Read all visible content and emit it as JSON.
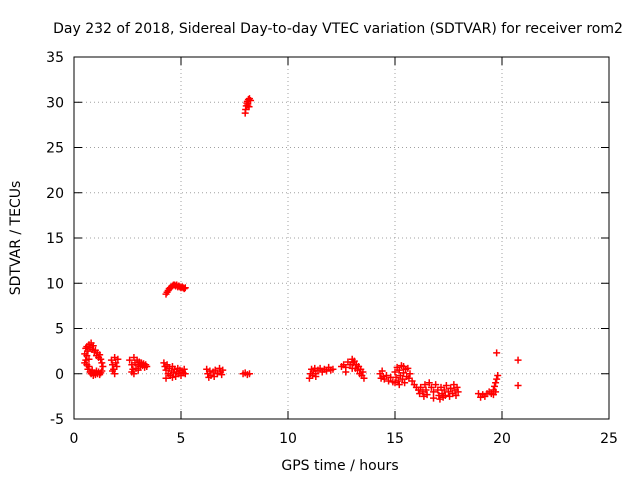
{
  "chart_data": {
    "type": "scatter",
    "title": "Day 232 of 2018, Sidereal Day-to-day VTEC variation (SDTVAR) for receiver rom2",
    "xlabel": "GPS time / hours",
    "ylabel": "SDTVAR / TECUs",
    "xlim": [
      0,
      25
    ],
    "ylim": [
      -5,
      35
    ],
    "xticks": [
      0,
      5,
      10,
      15,
      20,
      25
    ],
    "yticks": [
      -5,
      0,
      5,
      10,
      15,
      20,
      25,
      30,
      35
    ],
    "grid": true,
    "marker": "+",
    "color": "#ff0000",
    "series": [
      {
        "name": "SDTVAR",
        "points": [
          [
            0.5,
            2.2
          ],
          [
            0.55,
            2.8
          ],
          [
            0.6,
            3.0
          ],
          [
            0.65,
            2.5
          ],
          [
            0.7,
            3.2
          ],
          [
            0.75,
            2.9
          ],
          [
            0.8,
            3.4
          ],
          [
            0.85,
            2.7
          ],
          [
            0.9,
            3.1
          ],
          [
            0.95,
            2.4
          ],
          [
            1.0,
            2.6
          ],
          [
            1.05,
            2.0
          ],
          [
            1.1,
            2.3
          ],
          [
            1.15,
            1.8
          ],
          [
            1.2,
            2.1
          ],
          [
            1.25,
            1.6
          ],
          [
            0.55,
            1.5
          ],
          [
            0.6,
            1.0
          ],
          [
            0.65,
            0.5
          ],
          [
            0.7,
            0.8
          ],
          [
            0.75,
            0.2
          ],
          [
            0.8,
            0.0
          ],
          [
            0.85,
            0.4
          ],
          [
            0.9,
            -0.2
          ],
          [
            0.95,
            0.1
          ],
          [
            1.0,
            -0.1
          ],
          [
            1.05,
            0.3
          ],
          [
            1.1,
            0.0
          ],
          [
            1.15,
            0.2
          ],
          [
            1.2,
            -0.1
          ],
          [
            1.25,
            0.1
          ],
          [
            1.3,
            0.3
          ],
          [
            0.5,
            1.2
          ],
          [
            0.6,
            2.0
          ],
          [
            0.7,
            1.6
          ],
          [
            1.3,
            1.2
          ],
          [
            1.35,
            0.8
          ],
          [
            1.75,
            1.5
          ],
          [
            1.8,
            1.0
          ],
          [
            1.85,
            0.5
          ],
          [
            1.9,
            1.8
          ],
          [
            1.95,
            1.2
          ],
          [
            2.0,
            0.8
          ],
          [
            2.05,
            1.6
          ],
          [
            1.8,
            0.3
          ],
          [
            1.9,
            0.0
          ],
          [
            2.6,
            1.5
          ],
          [
            2.7,
            1.0
          ],
          [
            2.75,
            0.5
          ],
          [
            2.8,
            1.8
          ],
          [
            2.85,
            1.2
          ],
          [
            2.9,
            0.6
          ],
          [
            2.95,
            1.5
          ],
          [
            3.0,
            1.0
          ],
          [
            3.05,
            1.3
          ],
          [
            3.1,
            0.8
          ],
          [
            3.15,
            1.2
          ],
          [
            3.2,
            0.9
          ],
          [
            3.25,
            1.1
          ],
          [
            3.3,
            0.7
          ],
          [
            3.35,
            1.0
          ],
          [
            3.4,
            0.8
          ],
          [
            2.7,
            0.2
          ],
          [
            2.8,
            0.0
          ],
          [
            3.0,
            0.4
          ],
          [
            4.3,
            8.8
          ],
          [
            4.35,
            9.0
          ],
          [
            4.4,
            9.2
          ],
          [
            4.45,
            9.4
          ],
          [
            4.5,
            9.5
          ],
          [
            4.55,
            9.6
          ],
          [
            4.6,
            9.7
          ],
          [
            4.65,
            9.8
          ],
          [
            4.7,
            9.8
          ],
          [
            4.75,
            9.7
          ],
          [
            4.8,
            9.8
          ],
          [
            4.85,
            9.6
          ],
          [
            4.9,
            9.7
          ],
          [
            4.95,
            9.6
          ],
          [
            5.0,
            9.5
          ],
          [
            5.05,
            9.6
          ],
          [
            5.1,
            9.5
          ],
          [
            5.15,
            9.4
          ],
          [
            5.2,
            9.5
          ],
          [
            4.2,
            1.2
          ],
          [
            4.25,
            0.8
          ],
          [
            4.3,
            0.4
          ],
          [
            4.35,
            1.0
          ],
          [
            4.4,
            0.0
          ],
          [
            4.45,
            0.6
          ],
          [
            4.5,
            -0.2
          ],
          [
            4.55,
            0.3
          ],
          [
            4.6,
            0.8
          ],
          [
            4.65,
            0.1
          ],
          [
            4.7,
            0.5
          ],
          [
            4.75,
            -0.3
          ],
          [
            4.8,
            0.2
          ],
          [
            4.85,
            0.6
          ],
          [
            4.9,
            0.0
          ],
          [
            4.95,
            0.4
          ],
          [
            5.0,
            -0.2
          ],
          [
            5.05,
            0.3
          ],
          [
            5.1,
            0.1
          ],
          [
            5.15,
            0.5
          ],
          [
            5.2,
            0.0
          ],
          [
            4.3,
            -0.5
          ],
          [
            4.6,
            -0.4
          ],
          [
            6.2,
            0.5
          ],
          [
            6.25,
            0.0
          ],
          [
            6.3,
            -0.4
          ],
          [
            6.35,
            0.3
          ],
          [
            6.4,
            -0.2
          ],
          [
            6.5,
            0.2
          ],
          [
            6.55,
            -0.3
          ],
          [
            6.6,
            0.4
          ],
          [
            6.7,
            0.0
          ],
          [
            6.8,
            0.6
          ],
          [
            6.85,
            0.2
          ],
          [
            6.9,
            -0.1
          ],
          [
            6.95,
            0.4
          ],
          [
            8.0,
            28.8
          ],
          [
            8.02,
            29.2
          ],
          [
            8.05,
            29.6
          ],
          [
            8.08,
            29.9
          ],
          [
            8.1,
            30.1
          ],
          [
            8.12,
            29.7
          ],
          [
            8.15,
            30.3
          ],
          [
            8.18,
            29.5
          ],
          [
            8.2,
            30.4
          ],
          [
            8.25,
            30.2
          ],
          [
            7.9,
            0.0
          ],
          [
            8.0,
            0.1
          ],
          [
            8.1,
            -0.1
          ],
          [
            8.2,
            0.0
          ],
          [
            11.0,
            -0.5
          ],
          [
            11.05,
            0.0
          ],
          [
            11.1,
            0.5
          ],
          [
            11.15,
            -0.2
          ],
          [
            11.2,
            0.3
          ],
          [
            11.25,
            0.6
          ],
          [
            11.3,
            0.0
          ],
          [
            11.4,
            0.4
          ],
          [
            11.5,
            0.6
          ],
          [
            11.6,
            0.2
          ],
          [
            11.7,
            0.5
          ],
          [
            11.8,
            0.3
          ],
          [
            11.9,
            0.7
          ],
          [
            12.0,
            0.4
          ],
          [
            12.1,
            0.5
          ],
          [
            11.3,
            -0.3
          ],
          [
            12.5,
            0.8
          ],
          [
            12.6,
            1.0
          ],
          [
            12.7,
            0.7
          ],
          [
            12.8,
            1.3
          ],
          [
            12.9,
            1.0
          ],
          [
            13.0,
            1.6
          ],
          [
            13.05,
            1.2
          ],
          [
            13.1,
            1.4
          ],
          [
            13.15,
            0.6
          ],
          [
            13.2,
            1.0
          ],
          [
            13.25,
            0.4
          ],
          [
            13.3,
            0.8
          ],
          [
            13.35,
            0.0
          ],
          [
            13.4,
            0.5
          ],
          [
            13.45,
            -0.2
          ],
          [
            13.5,
            0.2
          ],
          [
            13.55,
            -0.5
          ],
          [
            13.0,
            0.6
          ],
          [
            12.7,
            0.2
          ],
          [
            14.3,
            0.0
          ],
          [
            14.35,
            -0.5
          ],
          [
            14.4,
            0.3
          ],
          [
            14.45,
            -0.3
          ],
          [
            14.5,
            -0.6
          ],
          [
            14.6,
            -0.2
          ],
          [
            14.7,
            -0.8
          ],
          [
            14.8,
            -0.4
          ],
          [
            14.9,
            -0.9
          ],
          [
            15.0,
            0.2
          ],
          [
            15.05,
            -0.4
          ],
          [
            15.1,
            0.7
          ],
          [
            15.15,
            -0.8
          ],
          [
            15.2,
            0.4
          ],
          [
            15.25,
            -0.2
          ],
          [
            15.3,
            0.9
          ],
          [
            15.35,
            -0.6
          ],
          [
            15.4,
            0.1
          ],
          [
            15.45,
            -1.0
          ],
          [
            15.5,
            0.5
          ],
          [
            15.55,
            -0.3
          ],
          [
            15.6,
            0.6
          ],
          [
            15.65,
            -0.5
          ],
          [
            15.7,
            0.0
          ],
          [
            15.0,
            -1.0
          ],
          [
            15.2,
            -1.2
          ],
          [
            15.4,
            0.8
          ],
          [
            15.8,
            -0.8
          ],
          [
            15.9,
            -1.2
          ],
          [
            16.0,
            -1.5
          ],
          [
            16.1,
            -1.8
          ],
          [
            16.15,
            -2.2
          ],
          [
            16.2,
            -1.5
          ],
          [
            16.3,
            -2.0
          ],
          [
            16.35,
            -2.5
          ],
          [
            16.4,
            -1.2
          ],
          [
            16.45,
            -1.8
          ],
          [
            16.5,
            -2.3
          ],
          [
            16.6,
            -1.0
          ],
          [
            16.7,
            -1.5
          ],
          [
            16.8,
            -2.0
          ],
          [
            16.9,
            -1.2
          ],
          [
            17.0,
            -1.8
          ],
          [
            17.05,
            -2.4
          ],
          [
            17.1,
            -2.8
          ],
          [
            17.15,
            -1.5
          ],
          [
            17.2,
            -2.2
          ],
          [
            17.25,
            -2.6
          ],
          [
            17.3,
            -1.8
          ],
          [
            17.35,
            -2.4
          ],
          [
            17.4,
            -1.3
          ],
          [
            17.5,
            -2.0
          ],
          [
            17.55,
            -2.5
          ],
          [
            17.6,
            -1.6
          ],
          [
            17.7,
            -2.2
          ],
          [
            17.75,
            -1.2
          ],
          [
            17.8,
            -1.8
          ],
          [
            17.85,
            -2.4
          ],
          [
            17.9,
            -1.5
          ],
          [
            17.95,
            -2.0
          ],
          [
            16.8,
            -2.7
          ],
          [
            18.9,
            -2.2
          ],
          [
            19.0,
            -2.6
          ],
          [
            19.1,
            -2.3
          ],
          [
            19.2,
            -2.5
          ],
          [
            19.3,
            -2.2
          ],
          [
            19.4,
            -2.0
          ],
          [
            19.5,
            -2.2
          ],
          [
            19.6,
            -1.8
          ],
          [
            19.65,
            -1.4
          ],
          [
            19.7,
            -1.0
          ],
          [
            19.75,
            -0.6
          ],
          [
            19.8,
            -0.2
          ],
          [
            19.6,
            -2.3
          ],
          [
            19.7,
            -2.0
          ],
          [
            19.75,
            2.3
          ],
          [
            20.75,
            1.5
          ],
          [
            20.75,
            -1.3
          ]
        ]
      }
    ]
  }
}
